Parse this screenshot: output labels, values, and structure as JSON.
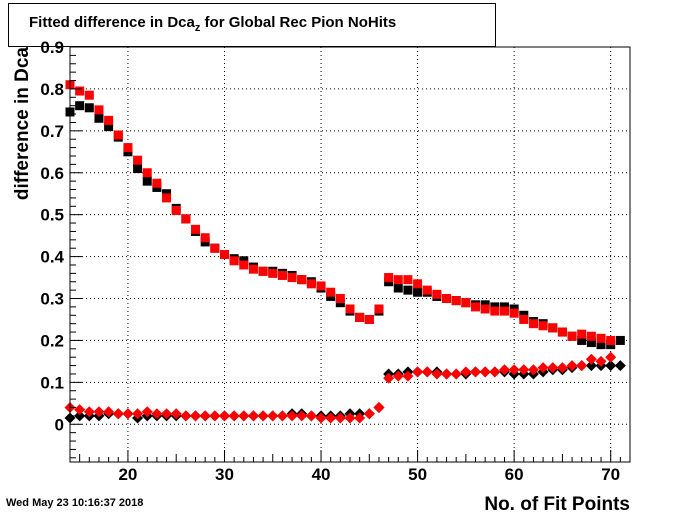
{
  "title": {
    "main": "Fitted difference in Dca",
    "sub": "z",
    "rest": " for Global Rec Pion NoHits"
  },
  "timestamp": "Wed May 23 10:16:37 2018",
  "chart_data": {
    "type": "scatter",
    "xlabel": "No. of Fit Points",
    "ylabel": "difference in Dca",
    "xlim": [
      14,
      72
    ],
    "ylim": [
      -0.09,
      0.9
    ],
    "x_ticks": [
      20,
      30,
      40,
      50,
      60,
      70
    ],
    "y_ticks": [
      0,
      0.1,
      0.2,
      0.3,
      0.4,
      0.5,
      0.6,
      0.7,
      0.8,
      0.9
    ],
    "y_tick_labels": [
      "0",
      "0.1",
      "0.2",
      "0.3",
      "0.4",
      "0.5",
      "0.6",
      "0.7",
      "0.8",
      "0.9"
    ],
    "grid": true,
    "colors": {
      "black": "#000000",
      "red": "#ff0000"
    },
    "series": [
      {
        "marker": "square",
        "color": "#000000",
        "x": [
          14,
          15,
          16,
          17,
          18,
          19,
          20,
          21,
          22,
          23,
          24,
          25,
          26,
          27,
          28,
          29,
          30,
          31,
          32,
          33,
          34,
          35,
          36,
          37,
          38,
          39,
          40,
          41,
          42,
          43,
          44,
          45,
          46,
          47,
          48,
          49,
          50,
          51,
          52,
          53,
          54,
          55,
          56,
          57,
          58,
          59,
          60,
          61,
          62,
          63,
          64,
          65,
          66,
          67,
          68,
          69,
          70,
          71
        ],
        "y": [
          0.745,
          0.76,
          0.755,
          0.73,
          0.71,
          0.685,
          0.65,
          0.61,
          0.58,
          0.565,
          0.55,
          0.515,
          0.49,
          0.46,
          0.435,
          0.42,
          0.405,
          0.395,
          0.39,
          0.375,
          0.365,
          0.365,
          0.36,
          0.355,
          0.345,
          0.34,
          0.325,
          0.305,
          0.29,
          0.27,
          0.255,
          0.25,
          0.27,
          0.34,
          0.325,
          0.32,
          0.315,
          0.315,
          0.305,
          0.3,
          0.295,
          0.29,
          0.285,
          0.285,
          0.28,
          0.28,
          0.275,
          0.26,
          0.245,
          0.24,
          0.23,
          0.22,
          0.21,
          0.2,
          0.195,
          0.19,
          0.19,
          0.2
        ]
      },
      {
        "marker": "square",
        "color": "#ff0000",
        "x": [
          14,
          15,
          16,
          17,
          18,
          19,
          20,
          21,
          22,
          23,
          24,
          25,
          26,
          27,
          28,
          29,
          30,
          31,
          32,
          33,
          34,
          35,
          36,
          37,
          38,
          39,
          40,
          41,
          42,
          43,
          44,
          45,
          46,
          47,
          48,
          49,
          50,
          51,
          52,
          53,
          54,
          55,
          56,
          57,
          58,
          59,
          60,
          61,
          62,
          63,
          64,
          65,
          66,
          67,
          68,
          69,
          70
        ],
        "y": [
          0.81,
          0.795,
          0.785,
          0.75,
          0.725,
          0.69,
          0.66,
          0.63,
          0.6,
          0.575,
          0.54,
          0.51,
          0.49,
          0.465,
          0.445,
          0.42,
          0.405,
          0.39,
          0.38,
          0.37,
          0.365,
          0.36,
          0.355,
          0.35,
          0.345,
          0.335,
          0.33,
          0.315,
          0.3,
          0.275,
          0.255,
          0.25,
          0.275,
          0.35,
          0.345,
          0.345,
          0.335,
          0.32,
          0.31,
          0.3,
          0.295,
          0.29,
          0.28,
          0.275,
          0.27,
          0.27,
          0.265,
          0.25,
          0.24,
          0.235,
          0.23,
          0.22,
          0.21,
          0.215,
          0.21,
          0.205,
          0.2
        ]
      },
      {
        "marker": "diamond",
        "color": "#000000",
        "x": [
          14,
          15,
          16,
          17,
          18,
          19,
          20,
          21,
          22,
          23,
          24,
          25,
          26,
          27,
          28,
          29,
          30,
          31,
          32,
          33,
          34,
          35,
          36,
          37,
          38,
          39,
          40,
          41,
          42,
          43,
          44,
          45,
          46,
          47,
          48,
          49,
          50,
          51,
          52,
          53,
          54,
          55,
          56,
          57,
          58,
          59,
          60,
          61,
          62,
          63,
          64,
          65,
          66,
          67,
          68,
          69,
          70,
          71
        ],
        "y": [
          0.015,
          0.02,
          0.02,
          0.02,
          0.025,
          0.025,
          0.025,
          0.015,
          0.02,
          0.02,
          0.02,
          0.02,
          0.02,
          0.02,
          0.02,
          0.02,
          0.02,
          0.02,
          0.02,
          0.02,
          0.02,
          0.02,
          0.02,
          0.025,
          0.025,
          0.02,
          0.02,
          0.02,
          0.02,
          0.025,
          0.025,
          0.025,
          0.04,
          0.12,
          0.12,
          0.125,
          0.125,
          0.125,
          0.125,
          0.12,
          0.12,
          0.12,
          0.125,
          0.125,
          0.125,
          0.125,
          0.12,
          0.12,
          0.12,
          0.125,
          0.13,
          0.13,
          0.135,
          0.14,
          0.14,
          0.14,
          0.14,
          0.14
        ]
      },
      {
        "marker": "diamond",
        "color": "#ff0000",
        "x": [
          14,
          15,
          16,
          17,
          18,
          19,
          20,
          21,
          22,
          23,
          24,
          25,
          26,
          27,
          28,
          29,
          30,
          31,
          32,
          33,
          34,
          35,
          36,
          37,
          38,
          39,
          40,
          41,
          42,
          43,
          44,
          45,
          46,
          47,
          48,
          49,
          50,
          51,
          52,
          53,
          54,
          55,
          56,
          57,
          58,
          59,
          60,
          61,
          62,
          63,
          64,
          65,
          66,
          67,
          68,
          69,
          70
        ],
        "y": [
          0.04,
          0.035,
          0.03,
          0.03,
          0.03,
          0.025,
          0.025,
          0.025,
          0.03,
          0.025,
          0.025,
          0.025,
          0.02,
          0.02,
          0.02,
          0.02,
          0.02,
          0.02,
          0.02,
          0.02,
          0.02,
          0.02,
          0.02,
          0.02,
          0.02,
          0.02,
          0.015,
          0.015,
          0.015,
          0.015,
          0.015,
          0.025,
          0.04,
          0.11,
          0.115,
          0.115,
          0.125,
          0.125,
          0.12,
          0.12,
          0.12,
          0.125,
          0.125,
          0.125,
          0.125,
          0.13,
          0.13,
          0.13,
          0.13,
          0.135,
          0.135,
          0.135,
          0.14,
          0.14,
          0.155,
          0.15,
          0.16
        ]
      }
    ]
  }
}
